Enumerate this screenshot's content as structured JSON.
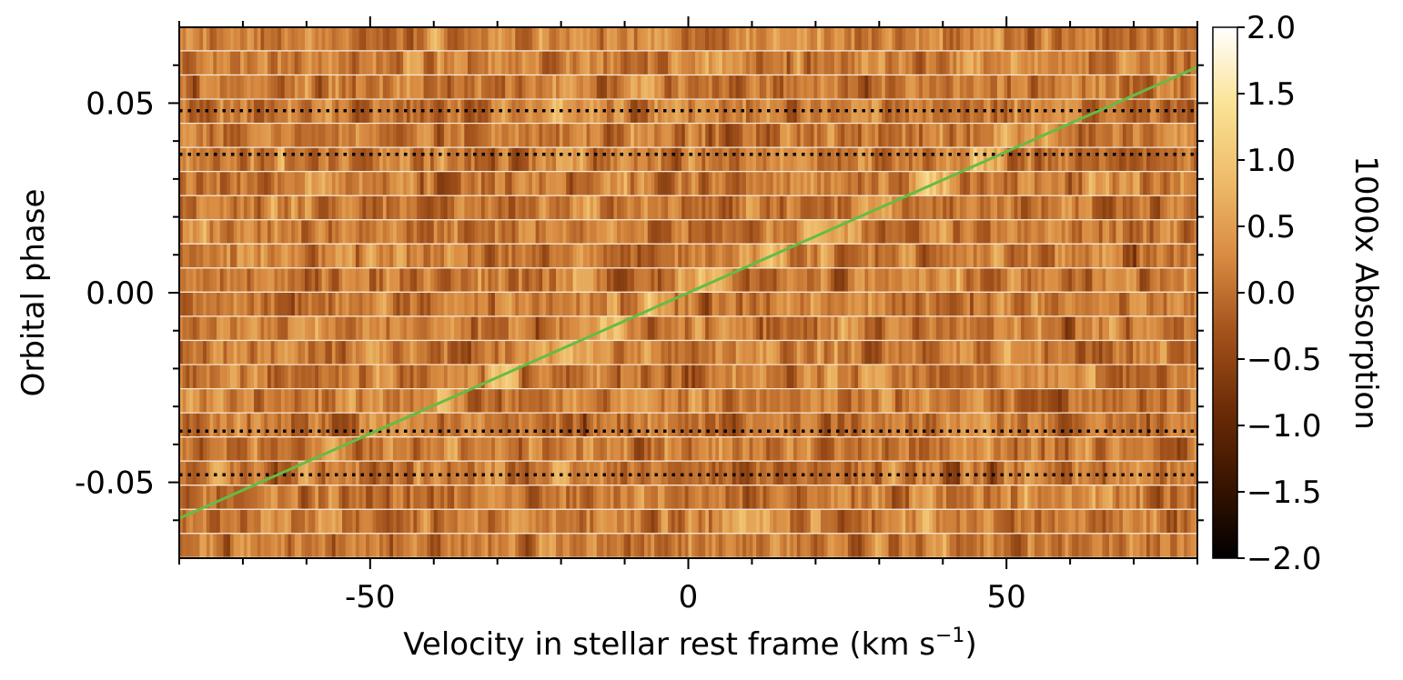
{
  "chart_data": {
    "type": "heatmap",
    "title": "",
    "xlabel": "Velocity in stellar rest frame (km s",
    "xlabel_superscript": "−1",
    "xlabel_suffix": ")",
    "ylabel": "Orbital phase",
    "xlim": [
      -80,
      80
    ],
    "ylim": [
      -0.07,
      0.07
    ],
    "x_ticks": [
      -50,
      0,
      50
    ],
    "x_tick_labels": [
      "-50",
      "0",
      "50"
    ],
    "y_ticks": [
      -0.05,
      0.0,
      0.05
    ],
    "y_tick_labels": [
      "-0.05",
      "0.00",
      "0.05"
    ],
    "colorbar": {
      "label": "1000x Absorption",
      "min": -2.0,
      "max": 2.0,
      "ticks": [
        2.0,
        1.5,
        1.0,
        0.5,
        0.0,
        -0.5,
        -1.0,
        -1.5,
        -2.0
      ],
      "tick_labels": [
        "2.0",
        "1.5",
        "1.0",
        "0.5",
        "0.0",
        "−0.5",
        "−1.0",
        "−1.5",
        "−2.0"
      ],
      "colormap": [
        "#000000",
        "#3b1400",
        "#6e2d07",
        "#a4531c",
        "#d98c42",
        "#eebc6a",
        "#fbe396",
        "#ffffff"
      ]
    },
    "colormap_name": "afmhot",
    "n_phase_rows": 22,
    "planet_trail": {
      "color": "#66bb44",
      "points": [
        [
          -80,
          -0.0595
        ],
        [
          80,
          0.0595
        ]
      ]
    },
    "transit_lines": {
      "style": "dotted",
      "color": "#000000",
      "phases": [
        0.048,
        0.0365,
        -0.0365,
        -0.048
      ]
    }
  }
}
